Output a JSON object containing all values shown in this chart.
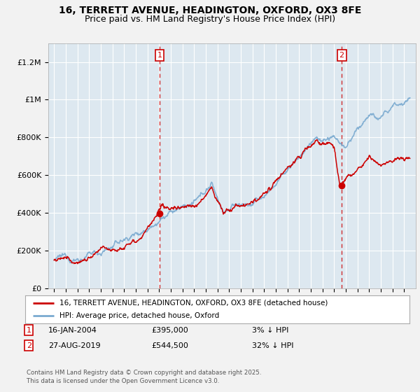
{
  "title": "16, TERRETT AVENUE, HEADINGTON, OXFORD, OX3 8FE",
  "subtitle": "Price paid vs. HM Land Registry's House Price Index (HPI)",
  "ylim": [
    0,
    1300000
  ],
  "yticks": [
    0,
    200000,
    400000,
    600000,
    800000,
    1000000,
    1200000
  ],
  "ytick_labels": [
    "£0",
    "£200K",
    "£400K",
    "£600K",
    "£800K",
    "£1M",
    "£1.2M"
  ],
  "hpi_color": "#7aaad0",
  "house_color": "#cc0000",
  "vline_color": "#cc0000",
  "sale1_year": 2004.04,
  "sale1_price": 395000,
  "sale2_year": 2019.65,
  "sale2_price": 544500,
  "legend_house": "16, TERRETT AVENUE, HEADINGTON, OXFORD, OX3 8FE (detached house)",
  "legend_hpi": "HPI: Average price, detached house, Oxford",
  "copyright": "Contains HM Land Registry data © Crown copyright and database right 2025.\nThis data is licensed under the Open Government Licence v3.0.",
  "bg_color": "#f2f2f2",
  "plot_bg": "#dde8f0",
  "grid_color": "#ffffff",
  "title_fontsize": 10,
  "subtitle_fontsize": 9
}
